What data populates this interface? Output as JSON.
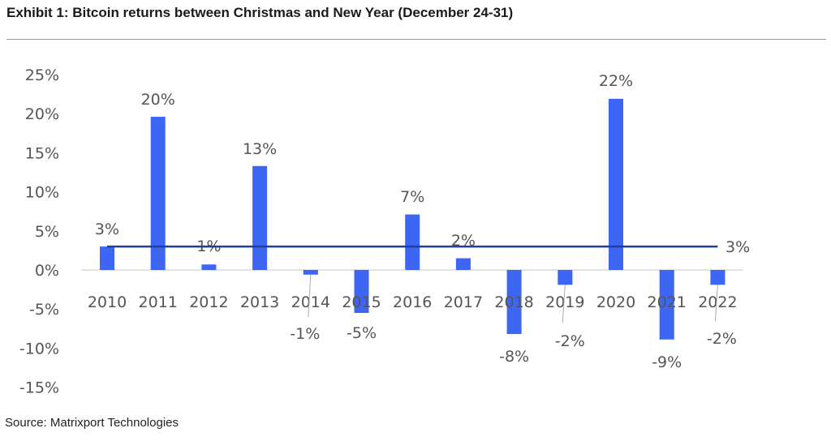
{
  "chart_data": {
    "type": "bar",
    "title": "Exhibit 1: Bitcoin returns between Christmas and New Year (December 24-31)",
    "source": "Source: Matrixport Technologies",
    "categories": [
      "2010",
      "2011",
      "2012",
      "2013",
      "2014",
      "2015",
      "2016",
      "2017",
      "2018",
      "2019",
      "2020",
      "2021",
      "2022"
    ],
    "values": [
      3.0,
      19.6,
      0.7,
      13.3,
      -0.6,
      -5.5,
      7.1,
      1.5,
      -8.2,
      -1.9,
      21.9,
      -8.9,
      -1.9
    ],
    "data_labels": [
      "3%",
      "20%",
      "1%",
      "13%",
      "-1%",
      "-5%",
      "7%",
      "2%",
      "-8%",
      "-2%",
      "22%",
      "-9%",
      "-2%"
    ],
    "average": {
      "value": 3.0,
      "label": "3%",
      "color": "#1f3f9a"
    },
    "ylim": [
      -15,
      25
    ],
    "yticks": [
      25,
      20,
      15,
      10,
      5,
      0,
      -5,
      -10,
      -15
    ],
    "ytick_labels": [
      "25%",
      "20%",
      "15%",
      "10%",
      "5%",
      "0%",
      "-5%",
      "-10%",
      "-15%"
    ],
    "xlabel": "",
    "ylabel": "",
    "grid": false,
    "bar_color": "#3d66f5"
  }
}
